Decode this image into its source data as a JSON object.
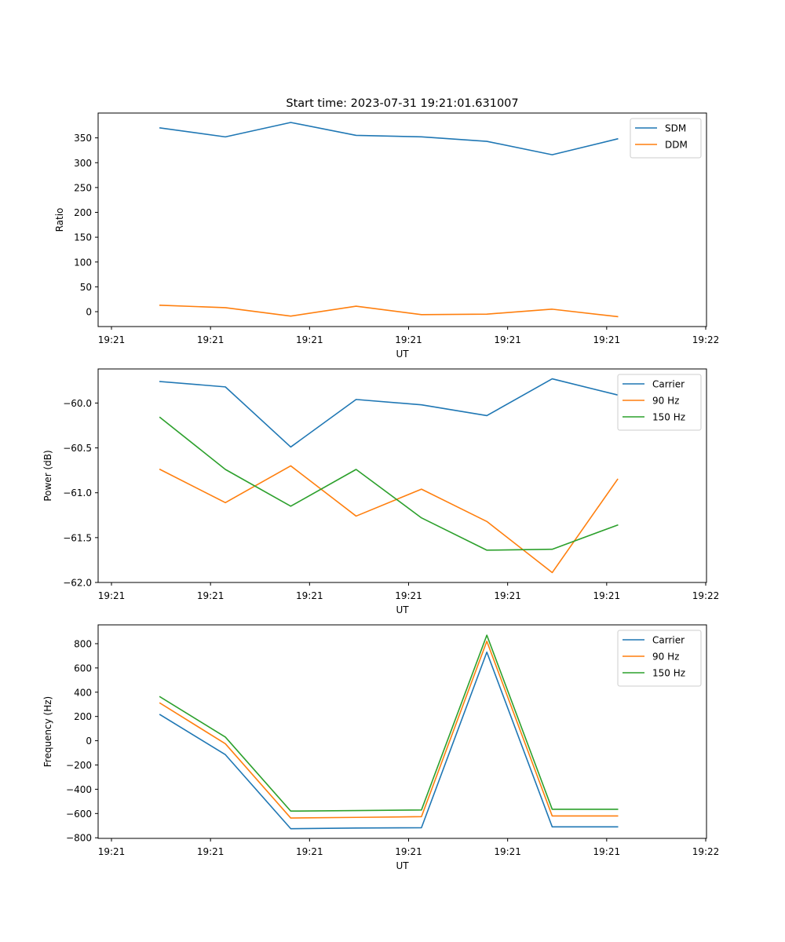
{
  "figure_title": "Start time: 2023-07-31 19:21:01.631007",
  "chart_data": [
    {
      "type": "line",
      "title": "Start time: 2023-07-31 19:21:01.631007",
      "xlabel": "UT",
      "ylabel": "Ratio",
      "xlim": [
        0,
        6
      ],
      "xticks": [
        0,
        1,
        2,
        3,
        4,
        5,
        6
      ],
      "xtick_labels": [
        "19:21",
        "19:21",
        "19:21",
        "19:21",
        "19:21",
        "19:21",
        "19:22"
      ],
      "ylim": [
        -30,
        400
      ],
      "yticks": [
        0,
        50,
        100,
        150,
        200,
        250,
        300,
        350
      ],
      "ytick_labels": [
        "0",
        "50",
        "100",
        "150",
        "200",
        "250",
        "300",
        "350"
      ],
      "x": [
        0.49,
        1.15,
        1.81,
        2.47,
        3.13,
        3.79,
        4.45,
        5.11
      ],
      "series": [
        {
          "name": "SDM",
          "color": "#1f77b4",
          "values": [
            370,
            352,
            381,
            355,
            352,
            343,
            316,
            348
          ]
        },
        {
          "name": "DDM",
          "color": "#ff7f0e",
          "values": [
            13,
            8,
            -9,
            11,
            -6,
            -5,
            5,
            -10
          ]
        }
      ],
      "legend": "top-right",
      "grid": false
    },
    {
      "type": "line",
      "xlabel": "UT",
      "ylabel": "Power (dB)",
      "xlim": [
        0,
        6
      ],
      "xticks": [
        0,
        1,
        2,
        3,
        4,
        5,
        6
      ],
      "xtick_labels": [
        "19:21",
        "19:21",
        "19:21",
        "19:21",
        "19:21",
        "19:21",
        "19:22"
      ],
      "ylim": [
        -62.0,
        -59.62
      ],
      "yticks": [
        -62.0,
        -61.5,
        -61.0,
        -60.5,
        -60.0
      ],
      "ytick_labels": [
        "−62.0",
        "−61.5",
        "−61.0",
        "−60.5",
        "−60.0"
      ],
      "x": [
        0.49,
        1.15,
        1.81,
        2.47,
        3.13,
        3.79,
        4.45,
        5.11
      ],
      "series": [
        {
          "name": "Carrier",
          "color": "#1f77b4",
          "values": [
            -59.76,
            -59.82,
            -60.49,
            -59.96,
            -60.02,
            -60.14,
            -59.73,
            -59.91
          ]
        },
        {
          "name": "90 Hz",
          "color": "#ff7f0e",
          "values": [
            -60.74,
            -61.11,
            -60.7,
            -61.26,
            -60.96,
            -61.32,
            -61.89,
            -60.85
          ]
        },
        {
          "name": "150 Hz",
          "color": "#2ca02c",
          "values": [
            -60.16,
            -60.74,
            -61.15,
            -60.74,
            -61.28,
            -61.64,
            -61.63,
            -61.36
          ]
        }
      ],
      "legend": "top-right",
      "grid": false
    },
    {
      "type": "line",
      "xlabel": "UT",
      "ylabel": "Frequency (Hz)",
      "xlim": [
        0,
        6
      ],
      "xticks": [
        0,
        1,
        2,
        3,
        4,
        5,
        6
      ],
      "xtick_labels": [
        "19:21",
        "19:21",
        "19:21",
        "19:21",
        "19:21",
        "19:21",
        "19:22"
      ],
      "ylim": [
        -805,
        955
      ],
      "yticks": [
        -800,
        -600,
        -400,
        -200,
        0,
        200,
        400,
        600,
        800
      ],
      "ytick_labels": [
        "−800",
        "−600",
        "−400",
        "−200",
        "0",
        "200",
        "400",
        "600",
        "800"
      ],
      "x": [
        0.49,
        1.15,
        1.81,
        2.47,
        3.13,
        3.79,
        4.45,
        5.11
      ],
      "series": [
        {
          "name": "Carrier",
          "color": "#1f77b4",
          "values": [
            215,
            -115,
            -725,
            -720,
            -717,
            730,
            -710,
            -710
          ]
        },
        {
          "name": "90 Hz",
          "color": "#ff7f0e",
          "values": [
            310,
            -25,
            -637,
            -632,
            -626,
            820,
            -620,
            -620
          ]
        },
        {
          "name": "150 Hz",
          "color": "#2ca02c",
          "values": [
            362,
            30,
            -580,
            -576,
            -571,
            870,
            -565,
            -565
          ]
        }
      ],
      "legend": "top-right",
      "grid": false
    }
  ]
}
